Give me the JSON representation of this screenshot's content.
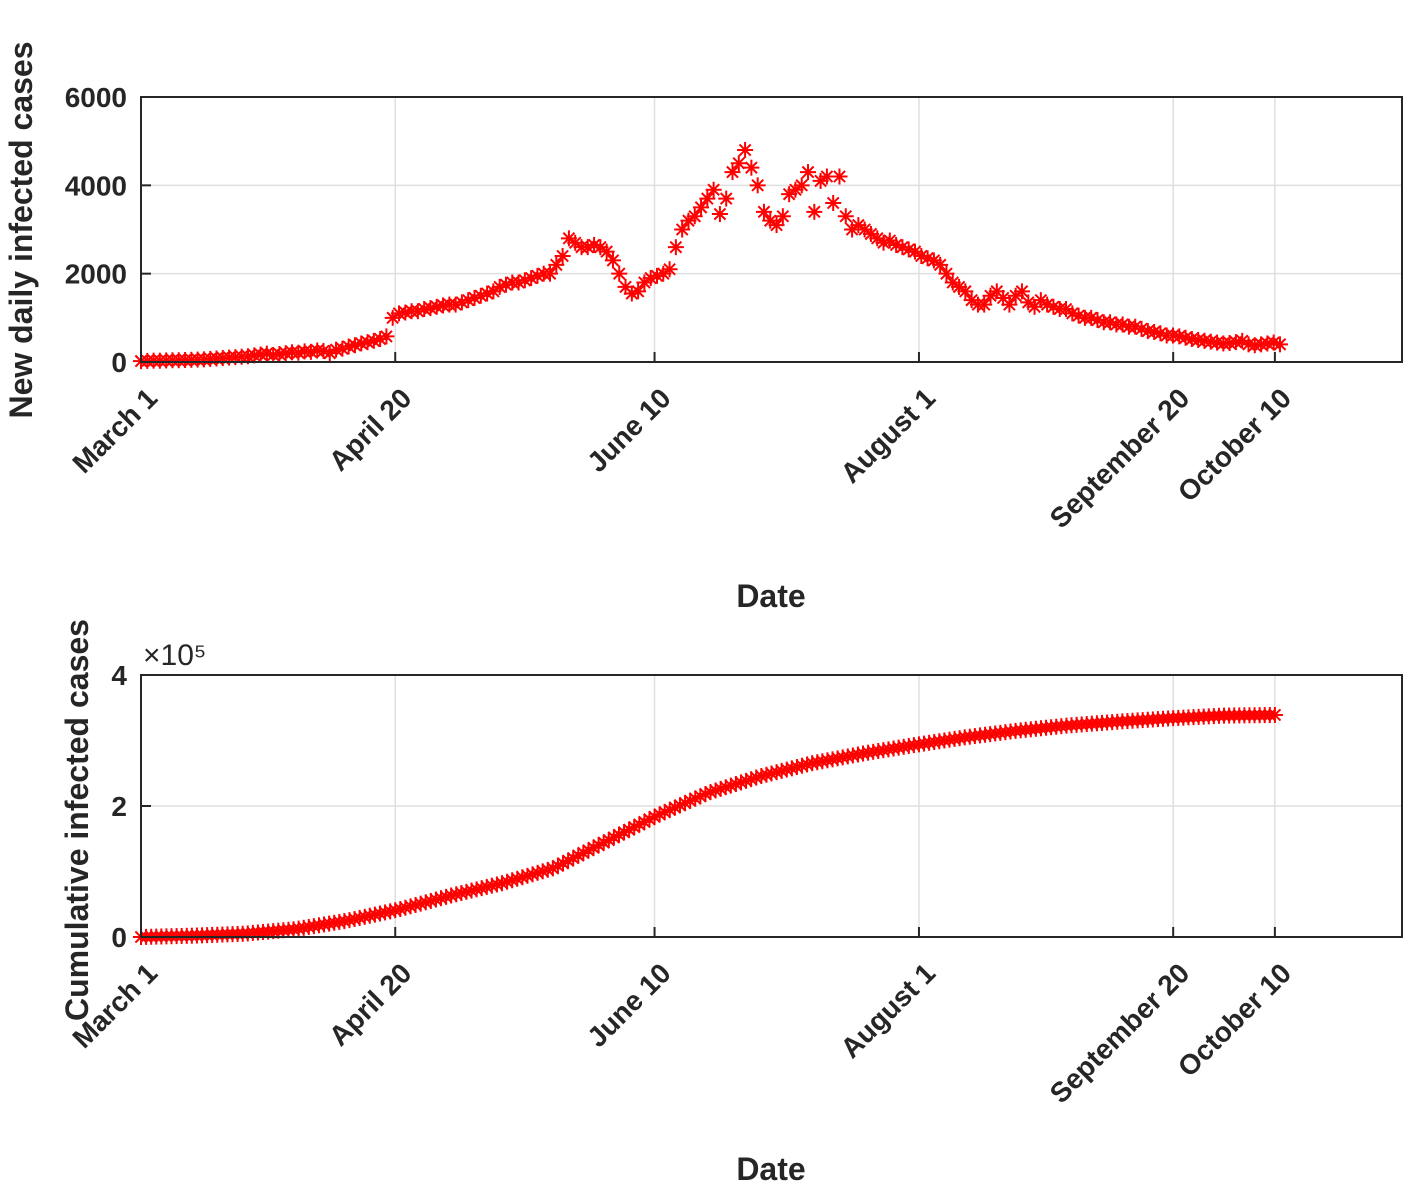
{
  "colors": {
    "marker": "#ff0000",
    "axis": "#262626",
    "grid": "#dfdfdf"
  },
  "chart_data": [
    {
      "type": "scatter",
      "marker": "asterisk",
      "xlabel": "Date",
      "ylabel": "New daily infected cases",
      "x_ticks": [
        "March 1",
        "April 20",
        "June 10",
        "August 1",
        "September 20",
        "October 10"
      ],
      "x_range": [
        "March 1",
        "November 4"
      ],
      "y_ticks": [
        "0",
        "2000",
        "4000",
        "6000"
      ],
      "ylim": [
        0,
        6000
      ],
      "grid": true,
      "series": [
        {
          "values": [
            20,
            25,
            30,
            30,
            35,
            40,
            40,
            45,
            50,
            55,
            60,
            70,
            80,
            90,
            100,
            110,
            120,
            130,
            150,
            170,
            190,
            160,
            180,
            200,
            220,
            210,
            240,
            230,
            260,
            250,
            200,
            280,
            300,
            350,
            380,
            420,
            450,
            480,
            520,
            580,
            1000,
            1100,
            1120,
            1150,
            1150,
            1200,
            1220,
            1250,
            1280,
            1300,
            1300,
            1350,
            1400,
            1450,
            1500,
            1550,
            1600,
            1700,
            1750,
            1800,
            1800,
            1850,
            1900,
            1950,
            2000,
            2000,
            2200,
            2400,
            2800,
            2700,
            2600,
            2600,
            2650,
            2600,
            2500,
            2300,
            2000,
            1700,
            1550,
            1600,
            1800,
            1900,
            1950,
            2000,
            2100,
            2600,
            3000,
            3200,
            3300,
            3500,
            3700,
            3900,
            3350,
            3700,
            4300,
            4500,
            4800,
            4400,
            4000,
            3400,
            3200,
            3100,
            3300,
            3800,
            3900,
            4000,
            4300,
            3400,
            4100,
            4200,
            3600,
            4200,
            3300,
            3000,
            3100,
            3000,
            2900,
            2800,
            2700,
            2750,
            2650,
            2600,
            2550,
            2500,
            2400,
            2350,
            2300,
            2200,
            2000,
            1800,
            1700,
            1600,
            1400,
            1300,
            1300,
            1500,
            1600,
            1450,
            1300,
            1500,
            1600,
            1350,
            1250,
            1400,
            1300,
            1250,
            1200,
            1200,
            1100,
            1050,
            1000,
            1000,
            950,
            900,
            900,
            850,
            850,
            800,
            800,
            750,
            700,
            680,
            650,
            600,
            600,
            580,
            550,
            520,
            500,
            480,
            460,
            440,
            420,
            430,
            450,
            480,
            400,
            380,
            400,
            420,
            440,
            400
          ]
        }
      ]
    },
    {
      "type": "scatter",
      "marker": "asterisk",
      "xlabel": "Date",
      "ylabel": "Cumulative infected cases",
      "x_ticks": [
        "March 1",
        "April 20",
        "June 10",
        "August 1",
        "September 20",
        "October 10"
      ],
      "x_range": [
        "March 1",
        "November 4"
      ],
      "y_ticks": [
        "0",
        "2",
        "4"
      ],
      "y_exponent": "×10⁵",
      "ylim": [
        0,
        4
      ],
      "grid": true,
      "series": [
        {
          "values": [
            0,
            0.02,
            0.05,
            0.12,
            0.25,
            0.42,
            0.63,
            0.82,
            1.05,
            1.45,
            1.85,
            2.2,
            2.45,
            2.65,
            2.8,
            2.93,
            3.05,
            3.15,
            3.23,
            3.29,
            3.34,
            3.38,
            3.39
          ]
        }
      ]
    }
  ]
}
